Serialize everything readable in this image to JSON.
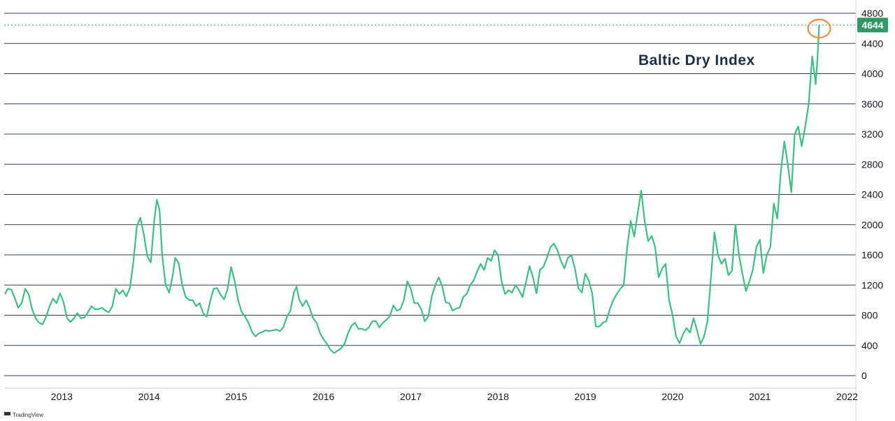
{
  "chart_data": {
    "type": "line",
    "title": "Baltic Dry Index",
    "ylim": [
      0,
      4800
    ],
    "yticks": [
      0,
      400,
      800,
      1200,
      1600,
      2000,
      2400,
      2800,
      3200,
      3600,
      4000,
      4400,
      4800
    ],
    "xlim": [
      2012.34,
      2022.1
    ],
    "xticks": [
      {
        "label": "2013",
        "value": 2013
      },
      {
        "label": "2014",
        "value": 2014
      },
      {
        "label": "2015",
        "value": 2015
      },
      {
        "label": "2016",
        "value": 2016
      },
      {
        "label": "2017",
        "value": 2017
      },
      {
        "label": "2018",
        "value": 2018
      },
      {
        "label": "2019",
        "value": 2019
      },
      {
        "label": "2020",
        "value": 2020
      },
      {
        "label": "2021",
        "value": 2021
      },
      {
        "label": "2022",
        "value": 2022
      }
    ],
    "last_value": 4644,
    "last_value_label": "4644",
    "line_color": "#3dbf83",
    "badge_color": "#2f9a66",
    "highlight_color": "#f08a3c",
    "grid": "horizontal",
    "series": [
      {
        "points": [
          [
            2012.35,
            1080
          ],
          [
            2012.38,
            1150
          ],
          [
            2012.42,
            1140
          ],
          [
            2012.46,
            1030
          ],
          [
            2012.5,
            900
          ],
          [
            2012.54,
            960
          ],
          [
            2012.58,
            1150
          ],
          [
            2012.62,
            1080
          ],
          [
            2012.66,
            880
          ],
          [
            2012.7,
            760
          ],
          [
            2012.74,
            700
          ],
          [
            2012.78,
            680
          ],
          [
            2012.82,
            780
          ],
          [
            2012.86,
            920
          ],
          [
            2012.9,
            1020
          ],
          [
            2012.94,
            960
          ],
          [
            2012.98,
            1090
          ],
          [
            2013.02,
            970
          ],
          [
            2013.06,
            760
          ],
          [
            2013.1,
            710
          ],
          [
            2013.14,
            760
          ],
          [
            2013.18,
            830
          ],
          [
            2013.22,
            760
          ],
          [
            2013.26,
            770
          ],
          [
            2013.3,
            840
          ],
          [
            2013.34,
            920
          ],
          [
            2013.38,
            880
          ],
          [
            2013.42,
            880
          ],
          [
            2013.46,
            900
          ],
          [
            2013.5,
            860
          ],
          [
            2013.54,
            840
          ],
          [
            2013.58,
            920
          ],
          [
            2013.62,
            1150
          ],
          [
            2013.66,
            1080
          ],
          [
            2013.7,
            1130
          ],
          [
            2013.74,
            1050
          ],
          [
            2013.78,
            1160
          ],
          [
            2013.82,
            1500
          ],
          [
            2013.86,
            1980
          ],
          [
            2013.9,
            2090
          ],
          [
            2013.94,
            1870
          ],
          [
            2013.98,
            1580
          ],
          [
            2014.02,
            1500
          ],
          [
            2014.06,
            2050
          ],
          [
            2014.09,
            2330
          ],
          [
            2014.12,
            2200
          ],
          [
            2014.15,
            1600
          ],
          [
            2014.19,
            1200
          ],
          [
            2014.23,
            1100
          ],
          [
            2014.27,
            1320
          ],
          [
            2014.3,
            1560
          ],
          [
            2014.34,
            1490
          ],
          [
            2014.38,
            1200
          ],
          [
            2014.42,
            1040
          ],
          [
            2014.46,
            1000
          ],
          [
            2014.5,
            1000
          ],
          [
            2014.54,
            920
          ],
          [
            2014.58,
            960
          ],
          [
            2014.62,
            830
          ],
          [
            2014.66,
            780
          ],
          [
            2014.7,
            980
          ],
          [
            2014.74,
            1150
          ],
          [
            2014.78,
            1160
          ],
          [
            2014.82,
            1070
          ],
          [
            2014.86,
            1010
          ],
          [
            2014.9,
            1150
          ],
          [
            2014.94,
            1440
          ],
          [
            2014.98,
            1260
          ],
          [
            2015.02,
            1000
          ],
          [
            2015.06,
            850
          ],
          [
            2015.1,
            780
          ],
          [
            2015.14,
            700
          ],
          [
            2015.18,
            580
          ],
          [
            2015.22,
            520
          ],
          [
            2015.26,
            560
          ],
          [
            2015.3,
            580
          ],
          [
            2015.34,
            600
          ],
          [
            2015.38,
            590
          ],
          [
            2015.42,
            600
          ],
          [
            2015.46,
            610
          ],
          [
            2015.5,
            590
          ],
          [
            2015.54,
            640
          ],
          [
            2015.58,
            780
          ],
          [
            2015.62,
            860
          ],
          [
            2015.66,
            1100
          ],
          [
            2015.69,
            1180
          ],
          [
            2015.72,
            1010
          ],
          [
            2015.76,
            920
          ],
          [
            2015.8,
            1000
          ],
          [
            2015.84,
            900
          ],
          [
            2015.88,
            760
          ],
          [
            2015.92,
            700
          ],
          [
            2015.96,
            560
          ],
          [
            2016.0,
            480
          ],
          [
            2016.04,
            420
          ],
          [
            2016.08,
            340
          ],
          [
            2016.12,
            300
          ],
          [
            2016.16,
            330
          ],
          [
            2016.2,
            360
          ],
          [
            2016.24,
            420
          ],
          [
            2016.28,
            560
          ],
          [
            2016.32,
            660
          ],
          [
            2016.36,
            700
          ],
          [
            2016.4,
            620
          ],
          [
            2016.44,
            620
          ],
          [
            2016.48,
            600
          ],
          [
            2016.52,
            640
          ],
          [
            2016.56,
            720
          ],
          [
            2016.6,
            720
          ],
          [
            2016.64,
            640
          ],
          [
            2016.68,
            700
          ],
          [
            2016.72,
            740
          ],
          [
            2016.76,
            790
          ],
          [
            2016.8,
            930
          ],
          [
            2016.84,
            860
          ],
          [
            2016.88,
            880
          ],
          [
            2016.92,
            1000
          ],
          [
            2016.96,
            1250
          ],
          [
            2017.0,
            1150
          ],
          [
            2017.04,
            960
          ],
          [
            2017.08,
            960
          ],
          [
            2017.12,
            880
          ],
          [
            2017.16,
            720
          ],
          [
            2017.2,
            780
          ],
          [
            2017.24,
            1050
          ],
          [
            2017.28,
            1200
          ],
          [
            2017.32,
            1300
          ],
          [
            2017.36,
            1180
          ],
          [
            2017.4,
            970
          ],
          [
            2017.44,
            960
          ],
          [
            2017.48,
            860
          ],
          [
            2017.52,
            890
          ],
          [
            2017.56,
            900
          ],
          [
            2017.6,
            1040
          ],
          [
            2017.64,
            1080
          ],
          [
            2017.68,
            1200
          ],
          [
            2017.72,
            1260
          ],
          [
            2017.76,
            1380
          ],
          [
            2017.8,
            1480
          ],
          [
            2017.84,
            1400
          ],
          [
            2017.88,
            1560
          ],
          [
            2017.92,
            1520
          ],
          [
            2017.96,
            1660
          ],
          [
            2018.0,
            1600
          ],
          [
            2018.04,
            1250
          ],
          [
            2018.08,
            1080
          ],
          [
            2018.12,
            1130
          ],
          [
            2018.16,
            1100
          ],
          [
            2018.2,
            1200
          ],
          [
            2018.24,
            1130
          ],
          [
            2018.28,
            1040
          ],
          [
            2018.32,
            1240
          ],
          [
            2018.36,
            1450
          ],
          [
            2018.4,
            1300
          ],
          [
            2018.44,
            1090
          ],
          [
            2018.48,
            1400
          ],
          [
            2018.52,
            1440
          ],
          [
            2018.56,
            1560
          ],
          [
            2018.6,
            1700
          ],
          [
            2018.64,
            1750
          ],
          [
            2018.68,
            1660
          ],
          [
            2018.72,
            1520
          ],
          [
            2018.76,
            1420
          ],
          [
            2018.8,
            1560
          ],
          [
            2018.84,
            1600
          ],
          [
            2018.88,
            1420
          ],
          [
            2018.92,
            1160
          ],
          [
            2018.96,
            1100
          ],
          [
            2019.0,
            1350
          ],
          [
            2019.04,
            1260
          ],
          [
            2019.08,
            1080
          ],
          [
            2019.12,
            650
          ],
          [
            2019.16,
            650
          ],
          [
            2019.2,
            700
          ],
          [
            2019.24,
            720
          ],
          [
            2019.28,
            880
          ],
          [
            2019.32,
            1000
          ],
          [
            2019.36,
            1080
          ],
          [
            2019.4,
            1150
          ],
          [
            2019.44,
            1200
          ],
          [
            2019.48,
            1700
          ],
          [
            2019.52,
            2050
          ],
          [
            2019.56,
            1840
          ],
          [
            2019.6,
            2150
          ],
          [
            2019.64,
            2450
          ],
          [
            2019.68,
            2050
          ],
          [
            2019.72,
            1780
          ],
          [
            2019.76,
            1850
          ],
          [
            2019.8,
            1700
          ],
          [
            2019.84,
            1300
          ],
          [
            2019.88,
            1420
          ],
          [
            2019.92,
            1480
          ],
          [
            2019.96,
            1000
          ],
          [
            2020.0,
            800
          ],
          [
            2020.04,
            520
          ],
          [
            2020.08,
            430
          ],
          [
            2020.12,
            550
          ],
          [
            2020.16,
            630
          ],
          [
            2020.2,
            570
          ],
          [
            2020.24,
            760
          ],
          [
            2020.28,
            600
          ],
          [
            2020.32,
            420
          ],
          [
            2020.36,
            520
          ],
          [
            2020.4,
            720
          ],
          [
            2020.44,
            1300
          ],
          [
            2020.48,
            1900
          ],
          [
            2020.52,
            1600
          ],
          [
            2020.56,
            1480
          ],
          [
            2020.6,
            1550
          ],
          [
            2020.64,
            1330
          ],
          [
            2020.68,
            1390
          ],
          [
            2020.72,
            2000
          ],
          [
            2020.76,
            1600
          ],
          [
            2020.8,
            1350
          ],
          [
            2020.84,
            1120
          ],
          [
            2020.88,
            1250
          ],
          [
            2020.92,
            1400
          ],
          [
            2020.96,
            1700
          ],
          [
            2021.0,
            1800
          ],
          [
            2021.04,
            1360
          ],
          [
            2021.08,
            1600
          ],
          [
            2021.12,
            1700
          ],
          [
            2021.16,
            2280
          ],
          [
            2021.2,
            2080
          ],
          [
            2021.24,
            2700
          ],
          [
            2021.28,
            3100
          ],
          [
            2021.32,
            2800
          ],
          [
            2021.36,
            2430
          ],
          [
            2021.4,
            3200
          ],
          [
            2021.44,
            3300
          ],
          [
            2021.48,
            3040
          ],
          [
            2021.52,
            3300
          ],
          [
            2021.56,
            3600
          ],
          [
            2021.6,
            4230
          ],
          [
            2021.64,
            3860
          ],
          [
            2021.66,
            4200
          ],
          [
            2021.68,
            4644
          ]
        ]
      }
    ]
  },
  "watermark": "TradingView"
}
